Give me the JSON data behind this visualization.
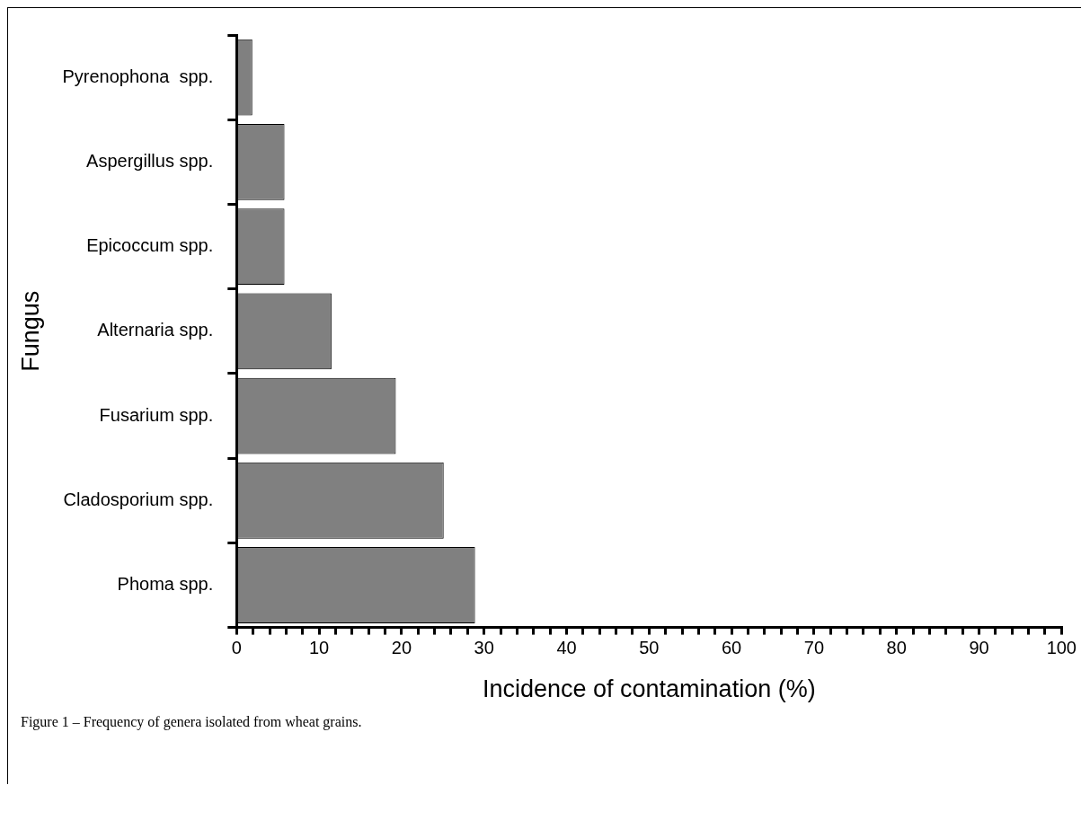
{
  "chart_data": {
    "type": "bar",
    "orientation": "horizontal",
    "xlabel": "Incidence of contamination (%)",
    "ylabel": "Fungus",
    "categories": [
      "Pyrenophona  spp.",
      "Aspergillus spp.",
      "Epicoccum spp.",
      "Alternaria spp.",
      "Fusarium spp.",
      "Cladosporium spp.",
      "Phoma spp."
    ],
    "values": [
      1.9,
      5.8,
      5.8,
      11.5,
      19.3,
      25.1,
      28.9
    ],
    "color": "#808080",
    "xlim": [
      0,
      100
    ],
    "xticks": [
      0,
      {
        "value": 2,
        "label": null
      },
      {
        "value": 4,
        "label": null
      },
      {
        "value": 6,
        "label": null
      },
      {
        "value": 8,
        "label": null
      },
      10,
      {
        "value": 12,
        "label": null
      },
      {
        "value": 14,
        "label": null
      },
      {
        "value": 16,
        "label": null
      },
      {
        "value": 18,
        "label": null
      },
      20,
      {
        "value": 22,
        "label": null
      },
      {
        "value": 24,
        "label": null
      },
      {
        "value": 26,
        "label": null
      },
      {
        "value": 28,
        "label": null
      },
      30,
      {
        "value": 32,
        "label": null
      },
      {
        "value": 34,
        "label": null
      },
      {
        "value": 36,
        "label": null
      },
      {
        "value": 38,
        "label": null
      },
      40,
      {
        "value": 42,
        "label": null
      },
      {
        "value": 44,
        "label": null
      },
      {
        "value": 46,
        "label": null
      },
      {
        "value": 48,
        "label": null
      },
      50,
      {
        "value": 52,
        "label": null
      },
      {
        "value": 54,
        "label": null
      },
      {
        "value": 56,
        "label": null
      },
      {
        "value": 58,
        "label": null
      },
      60,
      {
        "value": 62,
        "label": null
      },
      {
        "value": 64,
        "label": null
      },
      {
        "value": 66,
        "label": null
      },
      {
        "value": 68,
        "label": null
      },
      70,
      {
        "value": 72,
        "label": null
      },
      {
        "value": 74,
        "label": null
      },
      {
        "value": 76,
        "label": null
      },
      {
        "value": 78,
        "label": null
      },
      80,
      {
        "value": 82,
        "label": null
      },
      {
        "value": 84,
        "label": null
      },
      {
        "value": 86,
        "label": null
      },
      {
        "value": 88,
        "label": null
      },
      90,
      {
        "value": 92,
        "label": null
      },
      {
        "value": 94,
        "label": null
      },
      {
        "value": 96,
        "label": null
      },
      {
        "value": 98,
        "label": null
      },
      100
    ],
    "annotations": [
      "Figure 1 – Frequency of genera isolated from wheat grains."
    ]
  }
}
